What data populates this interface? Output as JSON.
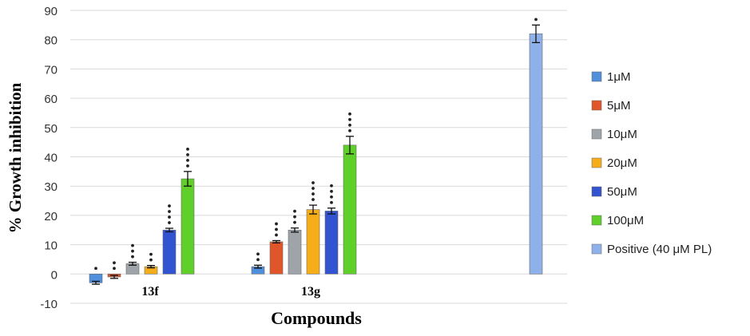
{
  "chart_data": {
    "type": "bar",
    "title": "",
    "xlabel": "Compounds",
    "ylabel": "% Growth inhibition",
    "ylim": [
      -10,
      90
    ],
    "yticks": [
      -10,
      0,
      10,
      20,
      30,
      40,
      50,
      60,
      70,
      80,
      90
    ],
    "grid": true,
    "legend_position": "right",
    "categories": [
      "13f",
      "13g"
    ],
    "series": [
      {
        "name": "1μM",
        "color": "#4f8fdc",
        "values": [
          -3,
          2.5
        ],
        "errors": [
          0.5,
          0.5
        ],
        "stars": [
          1,
          2
        ]
      },
      {
        "name": "5μM",
        "color": "#e0552a",
        "values": [
          -1,
          11
        ],
        "errors": [
          0.5,
          0.4
        ],
        "stars": [
          2,
          3
        ]
      },
      {
        "name": "10μM",
        "color": "#9ea4aa",
        "values": [
          3.5,
          15
        ],
        "errors": [
          0.5,
          0.7
        ],
        "stars": [
          3,
          3
        ]
      },
      {
        "name": "20μM",
        "color": "#f5ae1a",
        "values": [
          2.5,
          22
        ],
        "errors": [
          0.4,
          1.5
        ],
        "stars": [
          2,
          4
        ]
      },
      {
        "name": "50μM",
        "color": "#3254d0",
        "values": [
          15,
          21.5
        ],
        "errors": [
          0.6,
          1
        ],
        "stars": [
          4,
          4
        ]
      },
      {
        "name": "100μM",
        "color": "#5fcf2a",
        "values": [
          32.5,
          44
        ],
        "errors": [
          2.5,
          3
        ],
        "stars": [
          4,
          4
        ]
      }
    ],
    "positive_control": {
      "name": "Positive (40 μM PL)",
      "color": "#8fb1ea",
      "value": 82,
      "error": 3,
      "stars": 1
    }
  }
}
